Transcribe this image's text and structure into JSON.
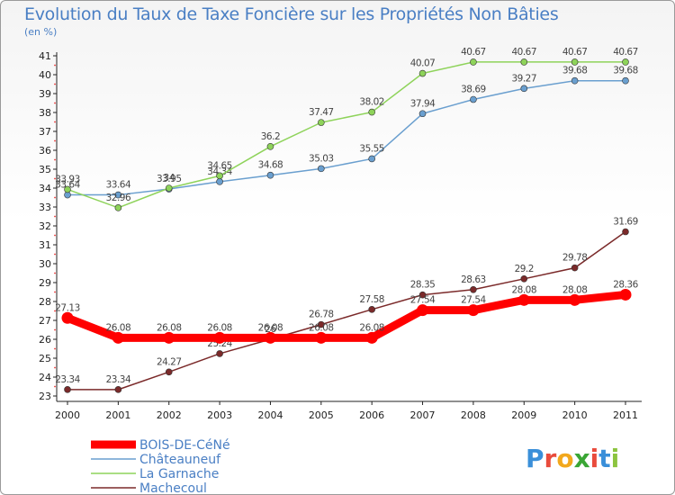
{
  "header": {
    "title": "Evolution du Taux de Taxe Foncière sur les Propriétés Non Bâties",
    "unit": "(en %)"
  },
  "logo": {
    "letters": [
      "P",
      "r",
      "o",
      "x",
      "i",
      "t",
      "i"
    ],
    "colors": [
      "#3a8fd9",
      "#e94b3c",
      "#f2a81d",
      "#3aa635",
      "#e94b3c",
      "#3a8fd9",
      "#8cc43f"
    ]
  },
  "chart_data": {
    "type": "line",
    "x": [
      "2000",
      "2001",
      "2002",
      "2003",
      "2004",
      "2005",
      "2006",
      "2007",
      "2008",
      "2009",
      "2010",
      "2011"
    ],
    "ylim": [
      23,
      41
    ],
    "yticks": [
      23,
      24,
      25,
      26,
      27,
      28,
      29,
      30,
      31,
      32,
      33,
      34,
      35,
      36,
      37,
      38,
      39,
      40,
      41
    ],
    "grid": false,
    "legend_position": "bottom-left",
    "series": [
      {
        "name": "BOIS-DE-CéNé",
        "color": "#ff0000",
        "values": [
          27.13,
          26.08,
          26.08,
          26.08,
          26.08,
          26.08,
          26.08,
          27.54,
          27.54,
          28.08,
          28.08,
          28.36
        ],
        "labels": [
          "27.13",
          "26.08",
          "26.08",
          "26.08",
          "26.08",
          "26.08",
          "26.08",
          "27.54",
          "27.54",
          "28.08",
          "28.08",
          "28.36"
        ]
      },
      {
        "name": "Châteauneuf",
        "color": "#6a9fcf",
        "values": [
          33.64,
          33.64,
          33.95,
          34.34,
          34.68,
          35.03,
          35.55,
          37.94,
          38.69,
          39.27,
          39.68,
          39.68
        ],
        "labels": [
          "33.64",
          "33.64",
          "33.95",
          "34.34",
          "34.68",
          "35.03",
          "35.55",
          "37.94",
          "38.69",
          "39.27",
          "39.68",
          "39.68"
        ]
      },
      {
        "name": "La Garnache",
        "color": "#8ed35a",
        "values": [
          33.93,
          32.96,
          34.0,
          34.65,
          36.2,
          37.47,
          38.02,
          40.07,
          40.67,
          40.67,
          40.67,
          40.67
        ],
        "labels": [
          "33.93",
          "32.96",
          "34",
          "34.65",
          "36.2",
          "37.47",
          "38.02",
          "40.07",
          "40.67",
          "40.67",
          "40.67",
          "40.67"
        ]
      },
      {
        "name": "Machecoul",
        "color": "#7b2a2a",
        "values": [
          23.34,
          23.34,
          24.27,
          25.24,
          26.0,
          26.78,
          27.58,
          28.35,
          28.63,
          29.2,
          29.78,
          31.69
        ],
        "labels": [
          "23.34",
          "23.34",
          "24.27",
          "25.24",
          "26",
          "26.78",
          "27.58",
          "28.35",
          "28.63",
          "29.2",
          "29.78",
          "31.69"
        ]
      }
    ]
  }
}
